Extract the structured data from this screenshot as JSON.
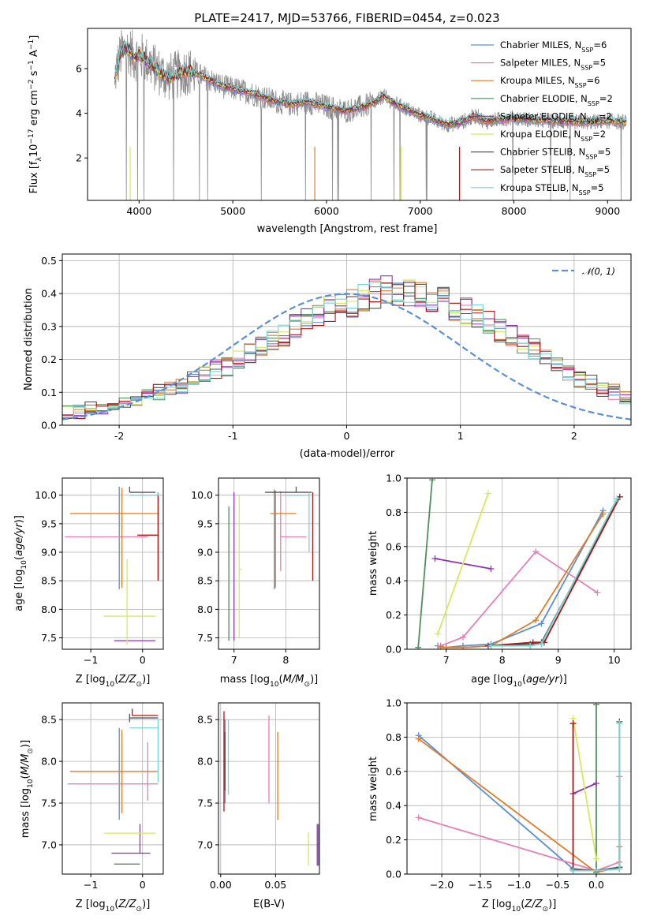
{
  "title": "PLATE=2417, MJD=53766, FIBERID=0454, z=0.023",
  "series": [
    {
      "name": "Chabrier MILES, N_SSP=6",
      "color": "#5b8fd6"
    },
    {
      "name": "Salpeter MILES, N_SSP=5",
      "color": "#e67fb6"
    },
    {
      "name": "Kroupa MILES, N_SSP=6",
      "color": "#e07b28"
    },
    {
      "name": "Chabrier ELODIE, N_SSP=2",
      "color": "#4f8f5c"
    },
    {
      "name": "Salpeter ELODIE, N_SSP=2",
      "color": "#8e33b0"
    },
    {
      "name": "Kroupa ELODIE, N_SSP=2",
      "color": "#d8e85a"
    },
    {
      "name": "Chabrier STELIB, N_SSP=5",
      "color": "#555555"
    },
    {
      "name": "Salpeter STELIB, N_SSP=5",
      "color": "#b01414"
    },
    {
      "name": "Kroupa STELIB, N_SSP=5",
      "color": "#72d6d6"
    }
  ],
  "data_color": "#8c8c8c",
  "normal_label": "𝒩(0, 1)",
  "normal_color": "#5b8fd6",
  "chart_data": [
    {
      "type": "line",
      "id": "spectrum",
      "title": "PLATE=2417, MJD=53766, FIBERID=0454, z=0.023",
      "xlabel": "wavelength [Angstrom, rest frame]",
      "ylabel": "Flux [f_λ 10^-17 erg cm^-2 s^-1 A^-1]",
      "xlim": [
        3450,
        9250
      ],
      "ylim": [
        0.1,
        7.8
      ],
      "xticks": [
        4000,
        5000,
        6000,
        7000,
        8000,
        9000
      ],
      "yticks": [
        2,
        4,
        6
      ],
      "legend_position": "upper right",
      "model_continuum": {
        "x": [
          3750,
          3800,
          3850,
          3900,
          3950,
          4000,
          4100,
          4200,
          4300,
          4400,
          4500,
          4600,
          4700,
          4800,
          4900,
          5000,
          5200,
          5400,
          5600,
          5800,
          6000,
          6200,
          6400,
          6550,
          6600,
          6700,
          6800,
          6900,
          7000,
          7100,
          7200,
          7300,
          7400,
          7500,
          7600,
          7700,
          7800,
          7900,
          8000,
          8200,
          8400,
          8600,
          8800,
          9000,
          9200
        ],
        "y": [
          5.8,
          6.6,
          6.9,
          6.8,
          6.5,
          6.6,
          6.3,
          5.9,
          5.6,
          5.7,
          5.9,
          5.8,
          5.6,
          5.4,
          5.2,
          5.1,
          4.9,
          4.6,
          4.4,
          4.5,
          4.3,
          4.1,
          4.3,
          4.55,
          4.8,
          4.5,
          4.3,
          4.1,
          3.9,
          3.8,
          3.6,
          3.5,
          3.55,
          3.7,
          3.9,
          3.6,
          3.7,
          3.75,
          3.8,
          3.7,
          3.65,
          3.6,
          3.6,
          3.65,
          3.6
        ]
      }
    },
    {
      "type": "histogram",
      "id": "residuals",
      "xlabel": "(data-model)/error",
      "ylabel": "Normed distribution",
      "xlim": [
        -2.5,
        2.5
      ],
      "ylim": [
        0,
        0.52
      ],
      "xticks": [
        -2,
        -1,
        0,
        1,
        2
      ],
      "yticks": [
        0.0,
        0.1,
        0.2,
        0.3,
        0.4,
        0.5
      ],
      "bin_width": 0.1,
      "bin_start": -2.5,
      "legend": "𝒩(0, 1)",
      "legend_position": "upper right",
      "base": [
        0.04,
        0.04,
        0.05,
        0.05,
        0.06,
        0.07,
        0.08,
        0.09,
        0.1,
        0.11,
        0.12,
        0.14,
        0.15,
        0.17,
        0.18,
        0.2,
        0.22,
        0.24,
        0.26,
        0.27,
        0.3,
        0.32,
        0.33,
        0.35,
        0.37,
        0.37,
        0.39,
        0.4,
        0.41,
        0.41,
        0.4,
        0.4,
        0.39,
        0.38,
        0.36,
        0.35,
        0.33,
        0.31,
        0.29,
        0.27,
        0.25,
        0.23,
        0.2,
        0.18,
        0.16,
        0.14,
        0.13,
        0.11,
        0.1,
        0.08
      ]
    },
    {
      "type": "errorbar",
      "id": "age-vs-Z",
      "xlabel": "Z [log10(Z/Z_sun)]",
      "ylabel": "age [log10(age/yr)]",
      "xlim": [
        -1.55,
        0.4
      ],
      "ylim": [
        7.3,
        10.3
      ],
      "xticks": [
        -1,
        0
      ],
      "yticks": [
        7.5,
        8.0,
        8.5,
        9.0,
        9.5,
        10.0
      ],
      "points": [
        {
          "s": 0,
          "x": -0.45,
          "y": 9.3,
          "xerr": [
            0.0,
            0.0
          ],
          "yerr": [
            0.95,
            0.85
          ]
        },
        {
          "s": 1,
          "x": -0.2,
          "y": 9.27,
          "xerr": [
            1.3,
            0.3
          ],
          "yerr": [
            0.0,
            0.0
          ]
        },
        {
          "s": 2,
          "x": -0.4,
          "y": 9.68,
          "xerr": [
            1.0,
            0.7
          ],
          "yerr": [
            1.3,
            0.45
          ]
        },
        {
          "s": 3,
          "x": 0.3,
          "y": 9.3,
          "xerr": [
            0.0,
            0.0
          ],
          "yerr": [
            0.8,
            0.75
          ]
        },
        {
          "s": 4,
          "x": -0.05,
          "y": 7.45,
          "xerr": [
            0.5,
            0.3
          ],
          "yerr": [
            0.0,
            0.0
          ]
        },
        {
          "s": 5,
          "x": -0.3,
          "y": 7.88,
          "xerr": [
            0.45,
            0.55
          ],
          "yerr": [
            0.5,
            1.0
          ]
        },
        {
          "s": 6,
          "x": -0.25,
          "y": 10.05,
          "xerr": [
            0.0,
            0.5
          ],
          "yerr": [
            0.0,
            0.1
          ]
        },
        {
          "s": 7,
          "x": 0.3,
          "y": 9.3,
          "xerr": [
            0.4,
            0.0
          ],
          "yerr": [
            0.8,
            0.75
          ]
        },
        {
          "s": 8,
          "x": 0.3,
          "y": 10.0,
          "xerr": [
            0.55,
            0.0
          ],
          "yerr": [
            0.0,
            0.05
          ]
        }
      ]
    },
    {
      "type": "errorbar",
      "id": "age-vs-mass",
      "xlabel": "mass [log10(M/M_sun)]",
      "ylabel": "",
      "xlim": [
        6.7,
        8.65
      ],
      "ylim": [
        7.3,
        10.3
      ],
      "xticks": [
        7,
        8
      ],
      "yticks": [
        7.5,
        8.0,
        8.5,
        9.0,
        9.5,
        10.0
      ],
      "points": [
        {
          "s": 0,
          "x": 7.78,
          "y": 9.3,
          "xerr": [
            0.0,
            0.0
          ],
          "yerr": [
            0.95,
            0.8
          ]
        },
        {
          "s": 1,
          "x": 7.9,
          "y": 9.27,
          "xerr": [
            0.0,
            0.5
          ],
          "yerr": [
            0.6,
            0.8
          ]
        },
        {
          "s": 2,
          "x": 7.8,
          "y": 9.68,
          "xerr": [
            0.1,
            0.4
          ],
          "yerr": [
            1.3,
            0.4
          ]
        },
        {
          "s": 3,
          "x": 6.9,
          "y": 8.6,
          "xerr": [
            0.0,
            0.0
          ],
          "yerr": [
            1.15,
            1.2
          ]
        },
        {
          "s": 4,
          "x": 7.0,
          "y": 8.75,
          "xerr": [
            0.0,
            0.0
          ],
          "yerr": [
            1.3,
            1.3
          ]
        },
        {
          "s": 5,
          "x": 7.1,
          "y": 8.7,
          "xerr": [
            0.0,
            0.05
          ],
          "yerr": [
            1.2,
            1.3
          ]
        },
        {
          "s": 6,
          "x": 8.2,
          "y": 10.05,
          "xerr": [
            0.6,
            0.3
          ],
          "yerr": [
            0.0,
            0.1
          ]
        },
        {
          "s": 7,
          "x": 8.52,
          "y": 9.3,
          "xerr": [
            0.0,
            0.0
          ],
          "yerr": [
            0.8,
            0.75
          ]
        },
        {
          "s": 8,
          "x": 8.45,
          "y": 10.0,
          "xerr": [
            0.5,
            0.0
          ],
          "yerr": [
            1.0,
            0.05
          ]
        }
      ]
    },
    {
      "type": "line",
      "id": "weight-vs-age",
      "xlabel": "age [log10(age/yr)]",
      "ylabel": "mass weight",
      "xlim": [
        6.3,
        10.3
      ],
      "ylim": [
        0,
        1.0
      ],
      "xticks": [
        7,
        8,
        9,
        10
      ],
      "yticks": [
        0.0,
        0.2,
        0.4,
        0.6,
        0.8,
        1.0
      ],
      "series": [
        {
          "s": 0,
          "x": [
            6.85,
            7.0,
            7.3,
            7.8,
            8.7,
            9.8
          ],
          "y": [
            0.02,
            0.01,
            0.02,
            0.03,
            0.15,
            0.81
          ]
        },
        {
          "s": 1,
          "x": [
            6.9,
            7.3,
            8.6,
            9.7
          ],
          "y": [
            0.02,
            0.07,
            0.57,
            0.33
          ]
        },
        {
          "s": 2,
          "x": [
            6.9,
            7.0,
            7.3,
            7.8,
            8.6,
            9.8
          ],
          "y": [
            0.01,
            0.01,
            0.01,
            0.02,
            0.17,
            0.79
          ]
        },
        {
          "s": 3,
          "x": [
            6.5,
            6.75
          ],
          "y": [
            0.01,
            0.99
          ]
        },
        {
          "s": 4,
          "x": [
            6.8,
            7.8
          ],
          "y": [
            0.53,
            0.47
          ]
        },
        {
          "s": 5,
          "x": [
            6.85,
            7.75
          ],
          "y": [
            0.09,
            0.91
          ]
        },
        {
          "s": 6,
          "x": [
            7.8,
            8.5,
            8.7,
            10.1
          ],
          "y": [
            0.02,
            0.03,
            0.04,
            0.89
          ]
        },
        {
          "s": 7,
          "x": [
            7.75,
            8.55,
            8.75,
            10.1
          ],
          "y": [
            0.02,
            0.04,
            0.04,
            0.89
          ]
        },
        {
          "s": 8,
          "x": [
            7.8,
            8.5,
            8.7,
            10.05
          ],
          "y": [
            0.02,
            0.02,
            0.03,
            0.88
          ]
        }
      ]
    },
    {
      "type": "errorbar",
      "id": "mass-vs-Z",
      "xlabel": "Z [log10(Z/Z_sun)]",
      "ylabel": "mass [log10(M/M_sun)]",
      "xlim": [
        -1.55,
        0.4
      ],
      "ylim": [
        6.65,
        8.7
      ],
      "xticks": [
        -1,
        0
      ],
      "yticks": [
        7.0,
        7.5,
        8.0,
        8.5
      ],
      "points": [
        {
          "s": 0,
          "x": -0.45,
          "y": 7.85,
          "xerr": [
            0.0,
            0.0
          ],
          "yerr": [
            0.55,
            0.55
          ]
        },
        {
          "s": 1,
          "x": 0.1,
          "y": 7.73,
          "xerr": [
            1.55,
            0.2
          ],
          "yerr": [
            0.2,
            0.5
          ]
        },
        {
          "s": 2,
          "x": -0.4,
          "y": 7.88,
          "xerr": [
            1.0,
            0.7
          ],
          "yerr": [
            0.5,
            0.5
          ]
        },
        {
          "s": 3,
          "x": -0.05,
          "y": 6.77,
          "xerr": [
            0.5,
            0.0
          ],
          "yerr": [
            0.0,
            0.0
          ]
        },
        {
          "s": 4,
          "x": -0.05,
          "y": 6.9,
          "xerr": [
            0.55,
            0.2
          ],
          "yerr": [
            0.0,
            0.35
          ]
        },
        {
          "s": 5,
          "x": -0.05,
          "y": 7.14,
          "xerr": [
            0.7,
            0.3
          ],
          "yerr": [
            0.0,
            0.0
          ]
        },
        {
          "s": 6,
          "x": -0.25,
          "y": 8.52,
          "xerr": [
            0.0,
            0.55
          ],
          "yerr": [
            0.05,
            0.05
          ]
        },
        {
          "s": 7,
          "x": -0.2,
          "y": 8.55,
          "xerr": [
            0.0,
            0.5
          ],
          "yerr": [
            0.0,
            0.08
          ]
        },
        {
          "s": 8,
          "x": 0.3,
          "y": 8.4,
          "xerr": [
            0.55,
            0.0
          ],
          "yerr": [
            0.65,
            0.1
          ]
        }
      ]
    },
    {
      "type": "errorbar",
      "id": "mass-vs-EBV",
      "xlabel": "E(B-V)",
      "ylabel": "",
      "xlim": [
        -0.002,
        0.09
      ],
      "ylim": [
        6.65,
        8.7
      ],
      "xticks": [
        0.0,
        0.05
      ],
      "yticks": [
        7.0,
        7.5,
        8.0,
        8.5
      ],
      "points": [
        {
          "s": 0,
          "x": 0.004,
          "y": 8.0,
          "xerr": [
            0.0,
            0.0
          ],
          "yerr": [
            0.5,
            0.5
          ]
        },
        {
          "s": 1,
          "x": 0.044,
          "y": 7.9,
          "xerr": [
            0.0,
            0.0
          ],
          "yerr": [
            0.4,
            0.65
          ]
        },
        {
          "s": 2,
          "x": 0.052,
          "y": 7.8,
          "xerr": [
            0.0,
            0.0
          ],
          "yerr": [
            0.5,
            0.55
          ]
        },
        {
          "s": 3,
          "x": 0.089,
          "y": 7.0,
          "xerr": [
            0.0,
            0.0
          ],
          "yerr": [
            0.25,
            0.25
          ]
        },
        {
          "s": 4,
          "x": 0.088,
          "y": 7.0,
          "xerr": [
            0.0,
            0.0
          ],
          "yerr": [
            0.25,
            0.25
          ]
        },
        {
          "s": 5,
          "x": 0.08,
          "y": 6.95,
          "xerr": [
            0.0,
            0.0
          ],
          "yerr": [
            0.2,
            0.2
          ]
        },
        {
          "s": 6,
          "x": 0.004,
          "y": 8.0,
          "xerr": [
            0.0,
            0.0
          ],
          "yerr": [
            0.35,
            0.35
          ]
        },
        {
          "s": 7,
          "x": 0.003,
          "y": 8.0,
          "xerr": [
            0.0,
            0.0
          ],
          "yerr": [
            0.6,
            0.6
          ]
        },
        {
          "s": 8,
          "x": 0.007,
          "y": 8.0,
          "xerr": [
            0.0,
            0.0
          ],
          "yerr": [
            0.4,
            0.5
          ]
        }
      ]
    },
    {
      "type": "line",
      "id": "weight-vs-Z",
      "xlabel": "Z [log10(Z/Z_sun)]",
      "ylabel": "mass weight",
      "xlim": [
        -2.45,
        0.45
      ],
      "ylim": [
        0,
        1.0
      ],
      "xticks": [
        -2.0,
        -1.5,
        -1.0,
        -0.5,
        0.0
      ],
      "yticks": [
        0.0,
        0.2,
        0.4,
        0.6,
        0.8,
        1.0
      ],
      "series": [
        {
          "s": 0,
          "x": [
            -2.3,
            -0.3,
            0.0,
            0.3
          ],
          "y": [
            0.81,
            0.03,
            0.02,
            0.03
          ]
        },
        {
          "s": 1,
          "x": [
            -2.3,
            0.0,
            0.3,
            0.3
          ],
          "y": [
            0.33,
            0.02,
            0.07,
            0.57
          ]
        },
        {
          "s": 2,
          "x": [
            -2.3,
            0.0,
            0.3,
            0.3
          ],
          "y": [
            0.79,
            0.01,
            0.04,
            0.16
          ]
        },
        {
          "s": 3,
          "x": [
            0.0,
            0.0
          ],
          "y": [
            0.01,
            0.99
          ]
        },
        {
          "s": 4,
          "x": [
            -0.3,
            0.0
          ],
          "y": [
            0.47,
            0.53
          ]
        },
        {
          "s": 5,
          "x": [
            -0.3,
            0.0
          ],
          "y": [
            0.91,
            0.09
          ]
        },
        {
          "s": 6,
          "x": [
            -0.3,
            0.0,
            0.3,
            0.3
          ],
          "y": [
            0.03,
            0.02,
            0.04,
            0.89
          ]
        },
        {
          "s": 7,
          "x": [
            -0.3,
            -0.3,
            0.0
          ],
          "y": [
            0.88,
            0.02,
            0.02
          ]
        },
        {
          "s": 8,
          "x": [
            -0.3,
            0.0,
            0.3,
            0.3
          ],
          "y": [
            0.02,
            0.02,
            0.03,
            0.88
          ]
        }
      ]
    }
  ]
}
